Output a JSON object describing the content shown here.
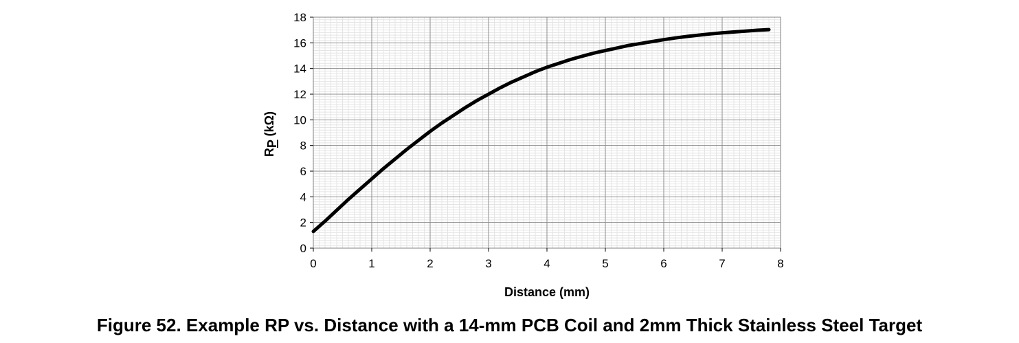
{
  "figure": {
    "caption": "Figure 52.  Example RP vs. Distance with a 14-mm PCB Coil and 2mm Thick Stainless Steel Target"
  },
  "chart_data": {
    "type": "line",
    "title": "",
    "xlabel": "Distance (mm)",
    "ylabel_main": "R",
    "ylabel_sub": "P",
    "ylabel_unit": " (kΩ)",
    "xlim": [
      0,
      8
    ],
    "ylim": [
      0,
      18
    ],
    "xticks": [
      0,
      1,
      2,
      3,
      4,
      5,
      6,
      7,
      8
    ],
    "yticks": [
      0,
      2,
      4,
      6,
      8,
      10,
      12,
      14,
      16,
      18
    ],
    "grid": true,
    "minor_grid": true,
    "legend": "none",
    "series": [
      {
        "color": "#000000",
        "x": [
          0,
          0.2,
          0.4,
          0.6,
          0.8,
          1.0,
          1.2,
          1.4,
          1.6,
          1.8,
          2.0,
          2.2,
          2.4,
          2.6,
          2.8,
          3.0,
          3.2,
          3.4,
          3.6,
          3.8,
          4.0,
          4.2,
          4.4,
          4.6,
          4.8,
          5.0,
          5.2,
          5.4,
          5.6,
          5.8,
          6.0,
          6.2,
          6.4,
          6.6,
          6.8,
          7.0,
          7.2,
          7.4,
          7.6,
          7.8
        ],
        "y": [
          1.3,
          2.1,
          2.95,
          3.8,
          4.6,
          5.4,
          6.2,
          6.95,
          7.7,
          8.4,
          9.1,
          9.75,
          10.35,
          10.95,
          11.5,
          12.0,
          12.5,
          12.95,
          13.35,
          13.75,
          14.1,
          14.4,
          14.7,
          14.95,
          15.2,
          15.4,
          15.6,
          15.8,
          15.95,
          16.1,
          16.25,
          16.38,
          16.5,
          16.6,
          16.7,
          16.78,
          16.85,
          16.92,
          16.98,
          17.03
        ]
      }
    ]
  }
}
